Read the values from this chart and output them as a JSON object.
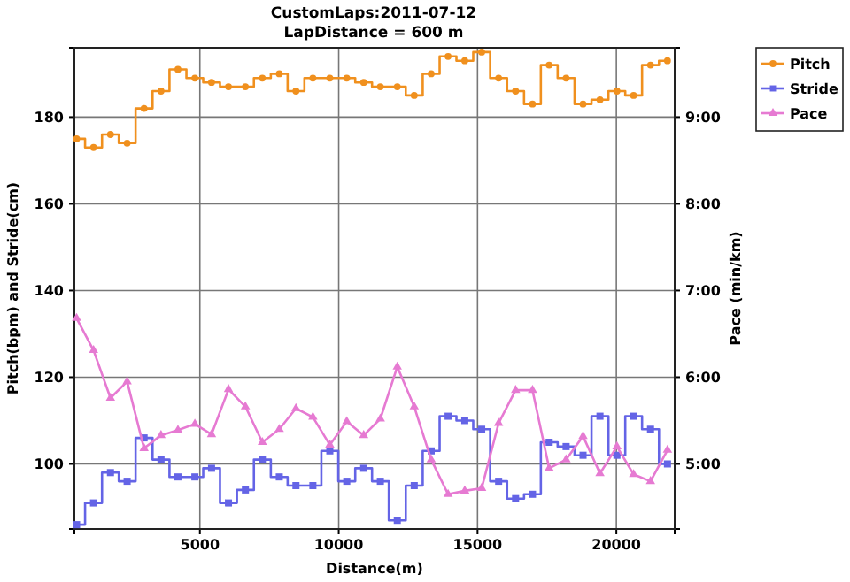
{
  "chart_data": {
    "type": "step",
    "title": "CustomLaps:2011-07-12",
    "subtitle": "LapDistance = 600 m",
    "xlabel": "Distance(m)",
    "ylabel": "Pitch(bpm) and Stride(cm)",
    "y2label": "Pace (min/km)",
    "x": [
      560,
      1170,
      1780,
      2380,
      2990,
      3600,
      4210,
      4820,
      5420,
      6030,
      6640,
      7250,
      7860,
      8460,
      9070,
      9680,
      10290,
      10900,
      11500,
      12110,
      12720,
      13330,
      13940,
      14540,
      15150,
      15760,
      16370,
      16980,
      17580,
      18190,
      18800,
      19410,
      20020,
      20620,
      21230,
      21840
    ],
    "series": [
      {
        "name": "Pitch",
        "color": "#f0901e",
        "marker": "circle",
        "values": [
          175,
          173,
          176,
          174,
          182,
          186,
          191,
          189,
          188,
          187,
          187,
          189,
          190,
          186,
          189,
          189,
          189,
          188,
          187,
          187,
          185,
          190,
          194,
          193,
          195,
          189,
          186,
          183,
          192,
          189,
          183,
          184,
          186,
          185,
          192,
          193
        ]
      },
      {
        "name": "Stride",
        "color": "#6464e6",
        "marker": "square",
        "values": [
          86,
          91,
          98,
          96,
          106,
          101,
          97,
          97,
          99,
          91,
          94,
          101,
          97,
          95,
          95,
          103,
          96,
          99,
          96,
          87,
          95,
          103,
          111,
          110,
          108,
          96,
          92,
          93,
          105,
          104,
          102,
          111,
          102,
          111,
          108,
          100
        ]
      },
      {
        "name": "Pace",
        "type": "line",
        "axis": "y2",
        "color": "#e67ad2",
        "marker": "triangle",
        "values": [
          6.68,
          6.31,
          5.76,
          5.95,
          5.18,
          5.33,
          5.39,
          5.46,
          5.34,
          5.86,
          5.66,
          5.25,
          5.4,
          5.64,
          5.54,
          5.22,
          5.49,
          5.33,
          5.52,
          6.12,
          5.66,
          5.05,
          4.65,
          4.69,
          4.72,
          5.47,
          5.85,
          5.85,
          4.95,
          5.05,
          5.32,
          4.89,
          5.2,
          4.88,
          4.8,
          5.16
        ]
      }
    ],
    "xlim": [
      480,
      22100
    ],
    "xticks": [
      5000,
      10000,
      15000,
      20000
    ],
    "ylim": [
      85,
      196
    ],
    "yticks": [
      100,
      120,
      140,
      160,
      180
    ],
    "y2lim": [
      4.25,
      9.8
    ],
    "y2ticks": [
      {
        "value": 5,
        "label": "5:00"
      },
      {
        "value": 6,
        "label": "6:00"
      },
      {
        "value": 7,
        "label": "7:00"
      },
      {
        "value": 8,
        "label": "8:00"
      },
      {
        "value": 9,
        "label": "9:00"
      }
    ],
    "grid": true,
    "legend": "top right"
  }
}
